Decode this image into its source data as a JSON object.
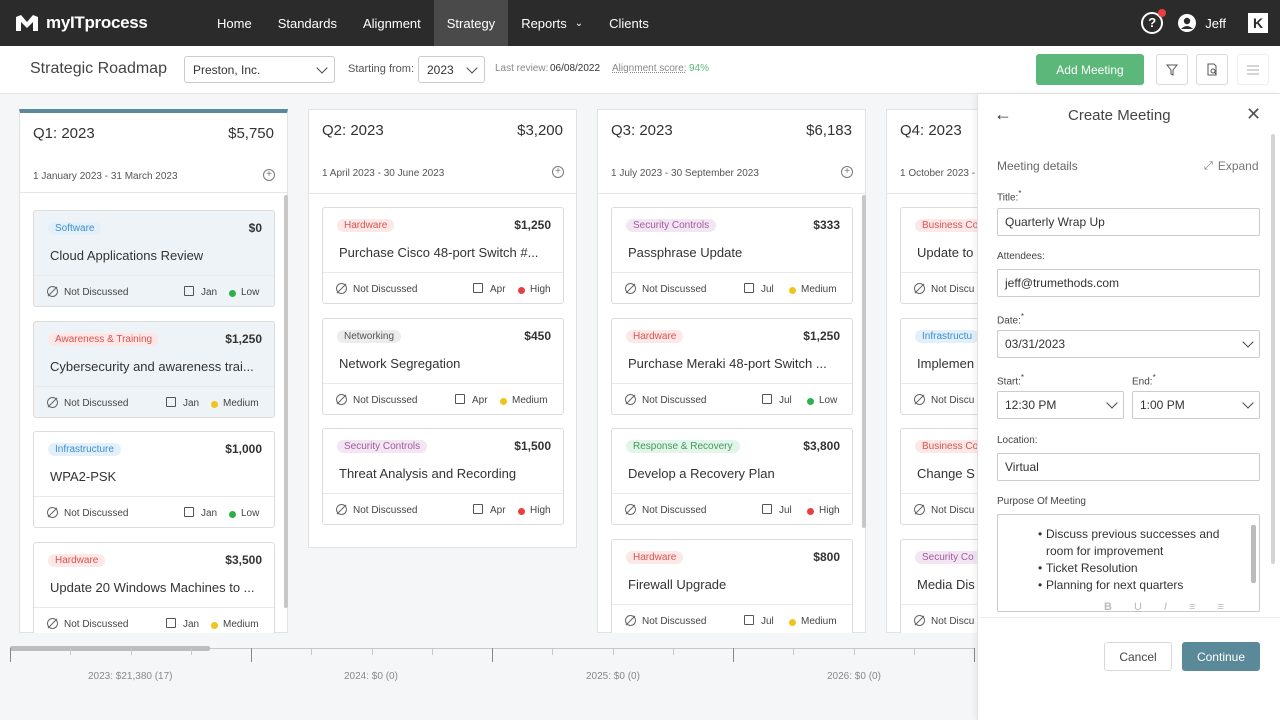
{
  "nav": {
    "brand": "myITprocess",
    "items": [
      "Home",
      "Standards",
      "Alignment",
      "Strategy",
      "Reports",
      "Clients"
    ],
    "active": "Strategy",
    "user": "Jeff"
  },
  "toolbar": {
    "page_title": "Strategic Roadmap",
    "client": "Preston, Inc.",
    "starting_from_label": "Starting from:",
    "year": "2023",
    "last_review_label": "Last review:",
    "last_review": "06/08/2022",
    "alignment_label": "Alignment score:",
    "alignment_score": "94%",
    "add_meeting": "Add Meeting"
  },
  "columns": [
    {
      "title": "Q1: 2023",
      "amount": "$5,750",
      "range": "1 January 2023 - 31 March 2023",
      "cards": [
        {
          "tag": "Software",
          "amount": "$0",
          "title": "Cloud Applications Review",
          "status": "Not Discussed",
          "month": "Jan",
          "priority": "Low"
        },
        {
          "tag": "Awareness & Training",
          "amount": "$1,250",
          "title": "Cybersecurity and awareness trai...",
          "status": "Not Discussed",
          "month": "Jan",
          "priority": "Medium"
        },
        {
          "tag": "Infrastructure",
          "amount": "$1,000",
          "title": "WPA2-PSK",
          "status": "Not Discussed",
          "month": "Jan",
          "priority": "Low"
        },
        {
          "tag": "Hardware",
          "amount": "$3,500",
          "title": "Update 20 Windows Machines to ...",
          "status": "Not Discussed",
          "month": "Jan",
          "priority": "Medium"
        }
      ]
    },
    {
      "title": "Q2: 2023",
      "amount": "$3,200",
      "range": "1 April 2023 - 30 June 2023",
      "cards": [
        {
          "tag": "Hardware",
          "amount": "$1,250",
          "title": "Purchase Cisco 48-port Switch #...",
          "status": "Not Discussed",
          "month": "Apr",
          "priority": "High"
        },
        {
          "tag": "Networking",
          "amount": "$450",
          "title": "Network Segregation",
          "status": "Not Discussed",
          "month": "Apr",
          "priority": "Medium"
        },
        {
          "tag": "Security Controls",
          "amount": "$1,500",
          "title": "Threat Analysis and Recording",
          "status": "Not Discussed",
          "month": "Apr",
          "priority": "High"
        }
      ]
    },
    {
      "title": "Q3: 2023",
      "amount": "$6,183",
      "range": "1 July 2023 - 30 September 2023",
      "cards": [
        {
          "tag": "Security Controls",
          "amount": "$333",
          "title": "Passphrase Update",
          "status": "Not Discussed",
          "month": "Jul",
          "priority": "Medium"
        },
        {
          "tag": "Hardware",
          "amount": "$1,250",
          "title": "Purchase Meraki 48-port Switch ...",
          "status": "Not Discussed",
          "month": "Jul",
          "priority": "Low"
        },
        {
          "tag": "Response & Recovery",
          "amount": "$3,800",
          "title": "Develop a Recovery Plan",
          "status": "Not Discussed",
          "month": "Jul",
          "priority": "High"
        },
        {
          "tag": "Hardware",
          "amount": "$800",
          "title": "Firewall Upgrade",
          "status": "Not Discussed",
          "month": "Jul",
          "priority": "Medium"
        }
      ]
    },
    {
      "title": "Q4: 2023",
      "range": "1 October 2023 -",
      "cards": [
        {
          "tag": "Business Co",
          "title": "Update to",
          "status": "Not Discu"
        },
        {
          "tag": "Infrastructu",
          "title": "Implemen",
          "status": "Not Discu"
        },
        {
          "tag": "Business Co",
          "title": "Change S",
          "status": "Not Discu"
        },
        {
          "tag": "Security Co",
          "title": "Media Dis",
          "status": "Not Discu"
        }
      ]
    }
  ],
  "timeline": {
    "labels": [
      "2023: $21,380 (17)",
      "2024: $0 (0)",
      "2025: $0 (0)",
      "2026: $0 (0)"
    ]
  },
  "panel": {
    "title": "Create Meeting",
    "section": "Meeting details",
    "expand": "Expand",
    "title_label": "Title:",
    "title_value": "Quarterly Wrap Up",
    "attendees_label": "Attendees:",
    "attendees_value": "jeff@trumethods.com",
    "date_label": "Date:",
    "date_value": "03/31/2023",
    "start_label": "Start:",
    "start_value": "12:30 PM",
    "end_label": "End:",
    "end_value": "1:00 PM",
    "location_label": "Location:",
    "location_value": "Virtual",
    "purpose_label": "Purpose Of Meeting",
    "purpose_items": [
      "Discuss previous successes and room for improvement",
      "Ticket Resolution",
      "Planning for next quarters"
    ],
    "cancel": "Cancel",
    "continue": "Continue"
  },
  "colors": {
    "accent_green": "#5cb87a",
    "continue": "#5a8a99",
    "low": "#2bb14a",
    "medium": "#f0c419",
    "high": "#e84040"
  }
}
